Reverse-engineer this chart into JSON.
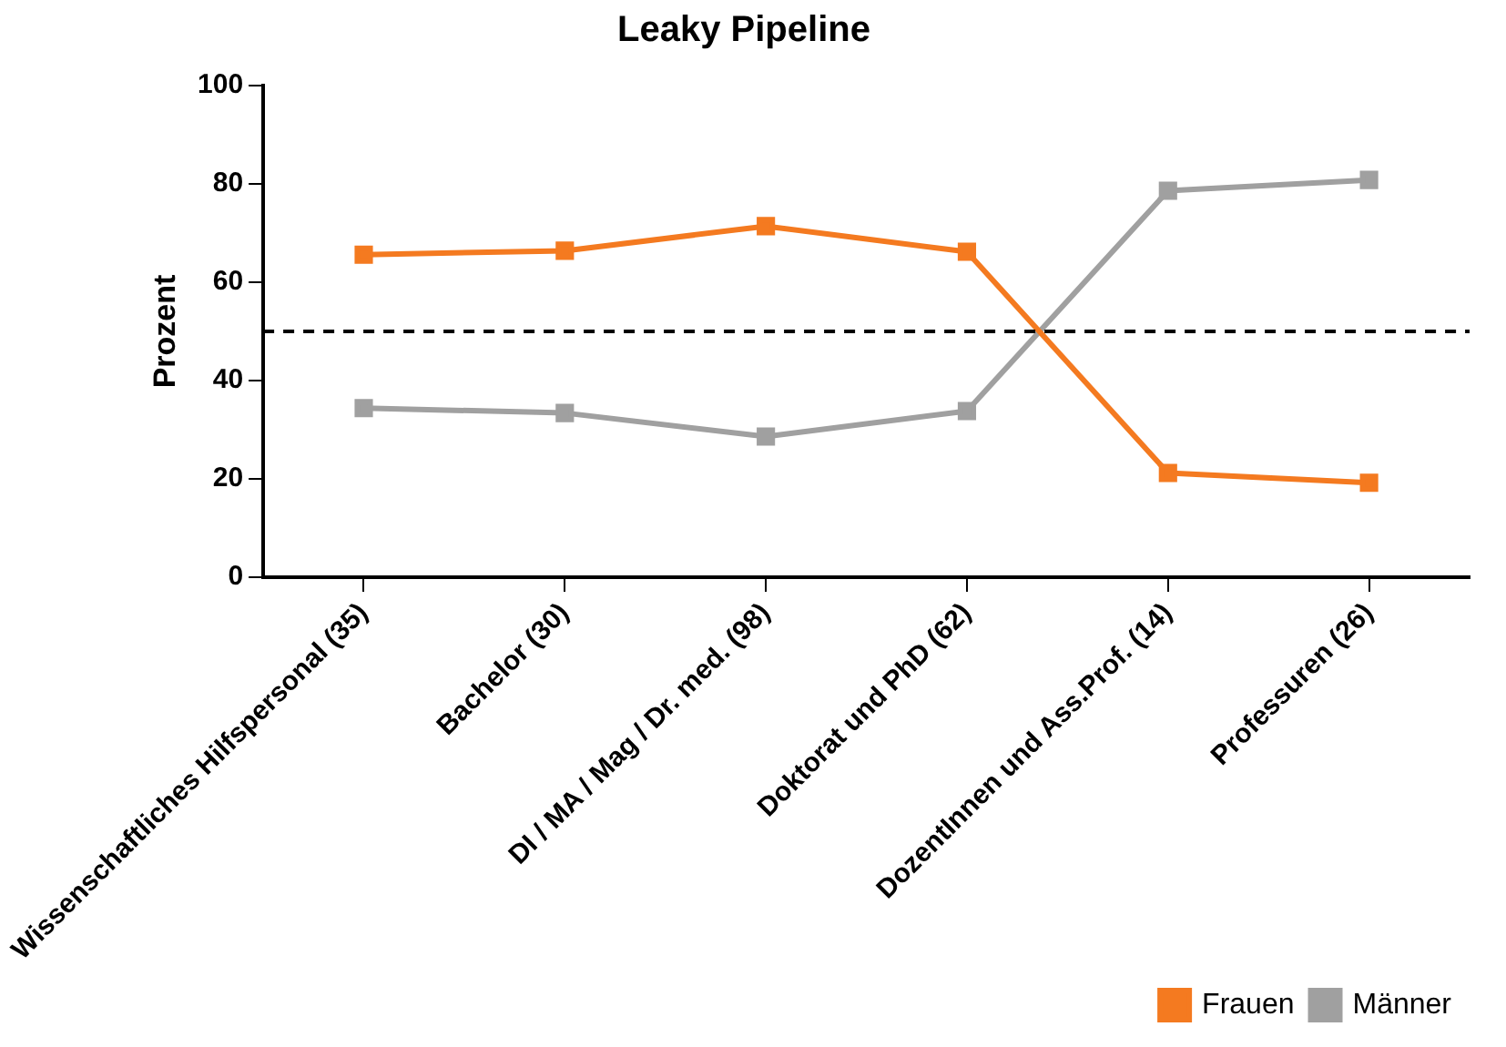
{
  "chart_data": {
    "type": "line",
    "title": "Leaky Pipeline",
    "ylabel": "Prozent",
    "categories": [
      "Wissenschaftliches Hilfspersonal (35)",
      "Bachelor (30)",
      "DI / MA / Mag / Dr. med. (98)",
      "Doktorat und PhD (62)",
      "DozentInnen und Ass.Prof. (14)",
      "Professuren (26)"
    ],
    "series": [
      {
        "name": "Frauen",
        "color": "#f47a20",
        "values": [
          65.6,
          66.4,
          71.4,
          66.2,
          21.2,
          19.2
        ]
      },
      {
        "name": "Männer",
        "color": "#a0a0a0",
        "values": [
          34.4,
          33.4,
          28.6,
          33.8,
          78.6,
          80.8
        ]
      }
    ],
    "ylim": [
      0,
      100
    ],
    "yticks": [
      0,
      20,
      40,
      60,
      80,
      100
    ],
    "ref_lines": [
      {
        "axis": "y",
        "value": 50,
        "color": "#000000",
        "line_style": "dashed"
      }
    ],
    "grid": false,
    "legend": "bottom right",
    "marker": "square",
    "line_style": "solid"
  }
}
